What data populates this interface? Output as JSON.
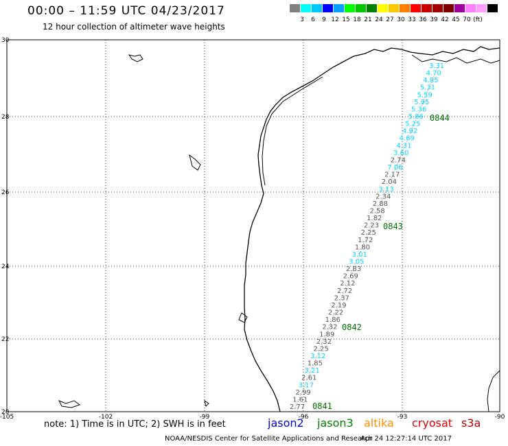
{
  "header": {
    "title": "00:00 – 11:59 UTC 04/23/2017",
    "subtitle": "12 hour collection of altimeter wave heights"
  },
  "legend": {
    "colors": [
      "#808080",
      "#00ffff",
      "#00c8ff",
      "#0000ff",
      "#00a0ff",
      "#00ff00",
      "#00c800",
      "#008000",
      "#ffff00",
      "#ffc800",
      "#ff8000",
      "#ff0000",
      "#c80000",
      "#a00000",
      "#800000",
      "#a000a0",
      "#ff80ff",
      "#ffa0ff",
      "#000000"
    ],
    "labels": [
      "3",
      "6",
      "9",
      "12",
      "15",
      "18",
      "21",
      "24",
      "27",
      "30",
      "33",
      "36",
      "39",
      "42",
      "45",
      "70",
      "(ft)"
    ]
  },
  "axes": {
    "lon_labels": [
      "-105",
      "-102",
      "-99",
      "-96",
      "-93",
      "-90"
    ],
    "lat_labels": [
      "30",
      "28",
      "26",
      "24",
      "22",
      "20"
    ]
  },
  "passes": [
    {
      "label": "0844"
    },
    {
      "label": "0843"
    },
    {
      "label": "0842"
    },
    {
      "label": "0841"
    }
  ],
  "swh": [
    {
      "v": "3.31",
      "c": "#00d8ff"
    },
    {
      "v": "4.70",
      "c": "#00d8ff"
    },
    {
      "v": "4.85",
      "c": "#00d8ff"
    },
    {
      "v": "5.31",
      "c": "#00d8ff"
    },
    {
      "v": "5.59",
      "c": "#00d8ff"
    },
    {
      "v": "5.95",
      "c": "#00d8ff"
    },
    {
      "v": "5.36",
      "c": "#00d8ff"
    },
    {
      "v": "5.86",
      "c": "#00d8ff"
    },
    {
      "v": "5.25",
      "c": "#00d8ff"
    },
    {
      "v": "4.92",
      "c": "#00d8ff"
    },
    {
      "v": "4.69",
      "c": "#00d8ff"
    },
    {
      "v": "4.31",
      "c": "#00d8ff"
    },
    {
      "v": "3.60",
      "c": "#00d8ff"
    },
    {
      "v": "2.74",
      "c": "#555555"
    },
    {
      "v": "7.06",
      "c": "#00d8ff"
    },
    {
      "v": "2.17",
      "c": "#555555"
    },
    {
      "v": "2.04",
      "c": "#555555"
    },
    {
      "v": "3.13",
      "c": "#00d8ff"
    },
    {
      "v": "2.34",
      "c": "#555555"
    },
    {
      "v": "2.88",
      "c": "#555555"
    },
    {
      "v": "2.58",
      "c": "#555555"
    },
    {
      "v": "1.82",
      "c": "#555555"
    },
    {
      "v": "2.23",
      "c": "#555555"
    },
    {
      "v": "2.25",
      "c": "#555555"
    },
    {
      "v": "1.72",
      "c": "#555555"
    },
    {
      "v": "1.80",
      "c": "#555555"
    },
    {
      "v": "3.01",
      "c": "#00d8ff"
    },
    {
      "v": "3.05",
      "c": "#00d8ff"
    },
    {
      "v": "2.83",
      "c": "#555555"
    },
    {
      "v": "2.69",
      "c": "#555555"
    },
    {
      "v": "2.12",
      "c": "#555555"
    },
    {
      "v": "2.72",
      "c": "#555555"
    },
    {
      "v": "2.37",
      "c": "#555555"
    },
    {
      "v": "2.19",
      "c": "#555555"
    },
    {
      "v": "2.22",
      "c": "#555555"
    },
    {
      "v": "1.86",
      "c": "#555555"
    },
    {
      "v": "2.32",
      "c": "#555555"
    },
    {
      "v": "1.89",
      "c": "#555555"
    },
    {
      "v": "2.32",
      "c": "#555555"
    },
    {
      "v": "2.25",
      "c": "#555555"
    },
    {
      "v": "3.12",
      "c": "#00d8ff"
    },
    {
      "v": "1.85",
      "c": "#555555"
    },
    {
      "v": "3.21",
      "c": "#00d8ff"
    },
    {
      "v": "2.61",
      "c": "#555555"
    },
    {
      "v": "3.17",
      "c": "#00d8ff"
    },
    {
      "v": "2.99",
      "c": "#555555"
    },
    {
      "v": "1.61",
      "c": "#555555"
    },
    {
      "v": "2.77",
      "c": "#555555"
    }
  ],
  "footer": {
    "note": "note: 1) Time is in UTC; 2) SWH is in feet",
    "satellites": [
      {
        "name": "jason2",
        "color": "#0000e0"
      },
      {
        "name": "jason3",
        "color": "#008000"
      },
      {
        "name": "altika",
        "color": "#ff9000"
      },
      {
        "name": "cryosat",
        "color": "#e00000"
      },
      {
        "name": "s3a",
        "color": "#b00000"
      }
    ],
    "credit": "NOAA/NESDIS Center for Satellite Applications and Research",
    "timestamp": "Apr 24 12:27:14 UTC 2017"
  }
}
